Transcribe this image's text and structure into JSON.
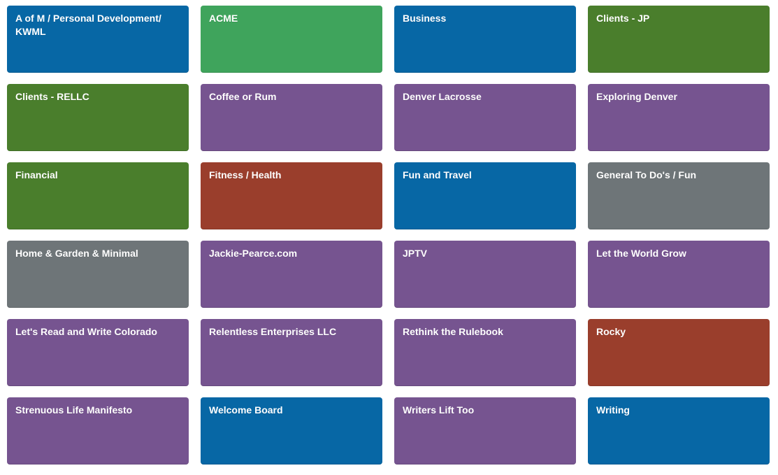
{
  "palette": {
    "blue": "#0767A5",
    "green": "#3FA45C",
    "olive": "#4A7E2C",
    "purple": "#765490",
    "red": "#9A3E2C",
    "gray": "#6E7578",
    "background": "#FFFFFF",
    "title_text": "#FFFFFF"
  },
  "boards": [
    {
      "label": "A of M / Personal Development/ KWML",
      "color": "blue"
    },
    {
      "label": "ACME",
      "color": "green"
    },
    {
      "label": "Business",
      "color": "blue"
    },
    {
      "label": "Clients - JP",
      "color": "olive"
    },
    {
      "label": "Clients - RELLC",
      "color": "olive"
    },
    {
      "label": "Coffee or Rum",
      "color": "purple"
    },
    {
      "label": "Denver Lacrosse",
      "color": "purple"
    },
    {
      "label": "Exploring Denver",
      "color": "purple"
    },
    {
      "label": "Financial",
      "color": "olive"
    },
    {
      "label": "Fitness / Health",
      "color": "red"
    },
    {
      "label": "Fun and Travel",
      "color": "blue"
    },
    {
      "label": "General To Do's / Fun",
      "color": "gray"
    },
    {
      "label": "Home & Garden & Minimal",
      "color": "gray"
    },
    {
      "label": "Jackie-Pearce.com",
      "color": "purple"
    },
    {
      "label": "JPTV",
      "color": "purple"
    },
    {
      "label": "Let the World Grow",
      "color": "purple"
    },
    {
      "label": "Let's Read and Write Colorado",
      "color": "purple"
    },
    {
      "label": "Relentless Enterprises LLC",
      "color": "purple"
    },
    {
      "label": "Rethink the Rulebook",
      "color": "purple"
    },
    {
      "label": "Rocky",
      "color": "red"
    },
    {
      "label": "Strenuous Life Manifesto",
      "color": "purple"
    },
    {
      "label": "Welcome Board",
      "color": "blue"
    },
    {
      "label": "Writers Lift Too",
      "color": "purple"
    },
    {
      "label": "Writing",
      "color": "blue"
    }
  ]
}
